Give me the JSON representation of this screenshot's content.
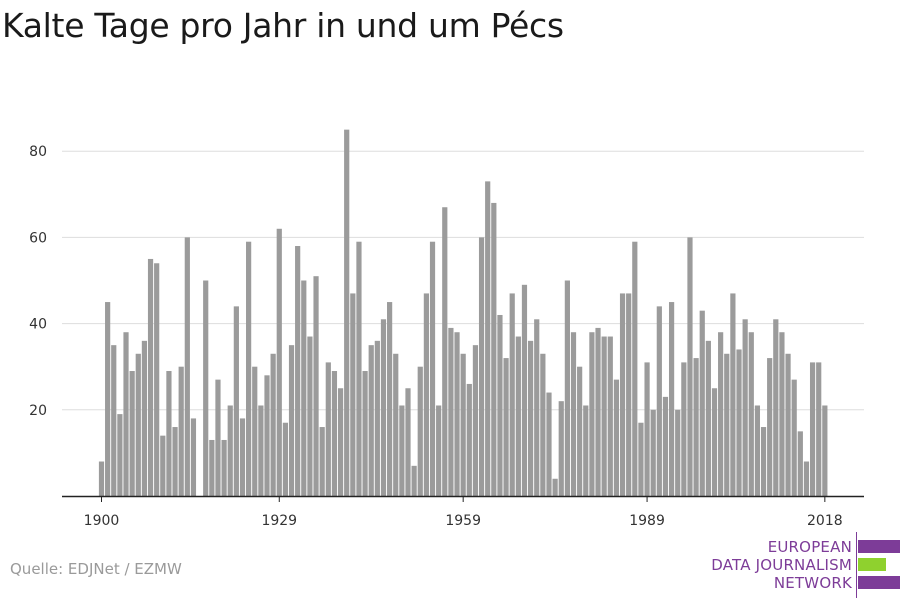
{
  "title": "Kalte Tage pro Jahr in und um Pécs",
  "source": "Quelle: EDJNet / EZMW",
  "logo": {
    "line1": "EUROPEAN",
    "line2": "DATA JOURNALISM",
    "line3": "NETWORK",
    "colors": {
      "purple": "#7d3c98",
      "green": "#8fd12e"
    }
  },
  "colors": {
    "bar": "#9b9b9b",
    "grid": "#dddddd",
    "axis": "#222222"
  },
  "chart_data": {
    "type": "bar",
    "title": "Kalte Tage pro Jahr in und um Pécs",
    "xlabel": "",
    "ylabel": "",
    "ylim": [
      0,
      90
    ],
    "xlim": [
      1900,
      2018
    ],
    "yticks": [
      20,
      40,
      60,
      80
    ],
    "xticks": [
      1900,
      1929,
      1959,
      1989,
      2018
    ],
    "grid": true,
    "x": [
      1900,
      1901,
      1902,
      1903,
      1904,
      1905,
      1906,
      1907,
      1908,
      1909,
      1910,
      1911,
      1912,
      1913,
      1914,
      1915,
      1916,
      1917,
      1918,
      1919,
      1920,
      1921,
      1922,
      1923,
      1924,
      1925,
      1926,
      1927,
      1928,
      1929,
      1930,
      1931,
      1932,
      1933,
      1934,
      1935,
      1936,
      1937,
      1938,
      1939,
      1940,
      1941,
      1942,
      1943,
      1944,
      1945,
      1946,
      1947,
      1948,
      1949,
      1950,
      1951,
      1952,
      1953,
      1954,
      1955,
      1956,
      1957,
      1958,
      1959,
      1960,
      1961,
      1962,
      1963,
      1964,
      1965,
      1966,
      1967,
      1968,
      1969,
      1970,
      1971,
      1972,
      1973,
      1974,
      1975,
      1976,
      1977,
      1978,
      1979,
      1980,
      1981,
      1982,
      1983,
      1984,
      1985,
      1986,
      1987,
      1988,
      1989,
      1990,
      1991,
      1992,
      1993,
      1994,
      1995,
      1996,
      1997,
      1998,
      1999,
      2000,
      2001,
      2002,
      2003,
      2004,
      2005,
      2006,
      2007,
      2008,
      2009,
      2010,
      2011,
      2012,
      2013,
      2014,
      2015,
      2016,
      2017,
      2018
    ],
    "values": [
      8,
      45,
      35,
      19,
      38,
      29,
      33,
      36,
      55,
      54,
      14,
      29,
      16,
      30,
      60,
      18,
      0,
      50,
      13,
      27,
      13,
      21,
      44,
      18,
      59,
      30,
      21,
      28,
      33,
      62,
      17,
      35,
      58,
      50,
      37,
      51,
      16,
      31,
      29,
      25,
      85,
      47,
      59,
      29,
      35,
      36,
      41,
      45,
      33,
      21,
      25,
      7,
      30,
      47,
      59,
      21,
      67,
      39,
      38,
      33,
      26,
      35,
      60,
      73,
      68,
      42,
      32,
      47,
      37,
      49,
      36,
      41,
      33,
      24,
      4,
      22,
      50,
      38,
      30,
      21,
      38,
      39,
      37,
      37,
      27,
      47,
      47,
      59,
      17,
      31,
      20,
      44,
      23,
      45,
      20,
      31,
      60,
      32,
      43,
      36,
      25,
      38,
      33,
      47,
      34,
      41,
      38,
      21,
      16,
      32,
      41,
      38,
      33,
      27,
      15,
      8,
      31,
      31,
      21
    ]
  }
}
